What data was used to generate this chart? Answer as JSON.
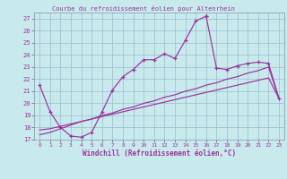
{
  "title": "Courbe du refroidissement éolien pour Altenrhein",
  "xlabel": "Windchill (Refroidissement éolien,°C)",
  "bg_color": "#c9eaed",
  "line_color": "#993399",
  "grid_color": "#99bbcc",
  "ylim": [
    17,
    27.5
  ],
  "xlim": [
    -0.5,
    23.5
  ],
  "yticks": [
    17,
    18,
    19,
    20,
    21,
    22,
    23,
    24,
    25,
    26,
    27
  ],
  "xticks": [
    0,
    1,
    2,
    3,
    4,
    5,
    6,
    7,
    8,
    9,
    10,
    11,
    12,
    13,
    14,
    15,
    16,
    17,
    18,
    19,
    20,
    21,
    22,
    23
  ],
  "line1_x": [
    0,
    1,
    2,
    3,
    4,
    5,
    6,
    7,
    8,
    9,
    10,
    11,
    12,
    13,
    14,
    15,
    16
  ],
  "line1_y": [
    21.5,
    19.3,
    18.0,
    17.3,
    17.2,
    17.6,
    19.3,
    21.1,
    22.2,
    22.8,
    23.6,
    23.6,
    24.1,
    23.7,
    25.2,
    26.8,
    27.2
  ],
  "line2_x": [
    16,
    17,
    18,
    19,
    20,
    21,
    22,
    23
  ],
  "line2_y": [
    27.2,
    22.9,
    22.8,
    23.1,
    23.3,
    23.4,
    23.3,
    20.4
  ],
  "line3_x": [
    0,
    1,
    2,
    3,
    4,
    5,
    6,
    7,
    8,
    9,
    10,
    11,
    12,
    13,
    14,
    15,
    16,
    17,
    18,
    19,
    20,
    21,
    22,
    23
  ],
  "line3_y": [
    17.8,
    17.9,
    18.1,
    18.3,
    18.5,
    18.7,
    18.9,
    19.1,
    19.3,
    19.5,
    19.7,
    19.9,
    20.1,
    20.3,
    20.5,
    20.7,
    20.9,
    21.1,
    21.3,
    21.5,
    21.7,
    21.9,
    22.1,
    20.4
  ],
  "line4_x": [
    0,
    1,
    2,
    3,
    4,
    5,
    6,
    7,
    8,
    9,
    10,
    11,
    12,
    13,
    14,
    15,
    16,
    17,
    18,
    19,
    20,
    21,
    22,
    23
  ],
  "line4_y": [
    17.4,
    17.6,
    17.9,
    18.2,
    18.5,
    18.7,
    19.0,
    19.2,
    19.5,
    19.7,
    20.0,
    20.2,
    20.5,
    20.7,
    21.0,
    21.2,
    21.5,
    21.7,
    22.0,
    22.2,
    22.5,
    22.7,
    23.0,
    20.4
  ]
}
